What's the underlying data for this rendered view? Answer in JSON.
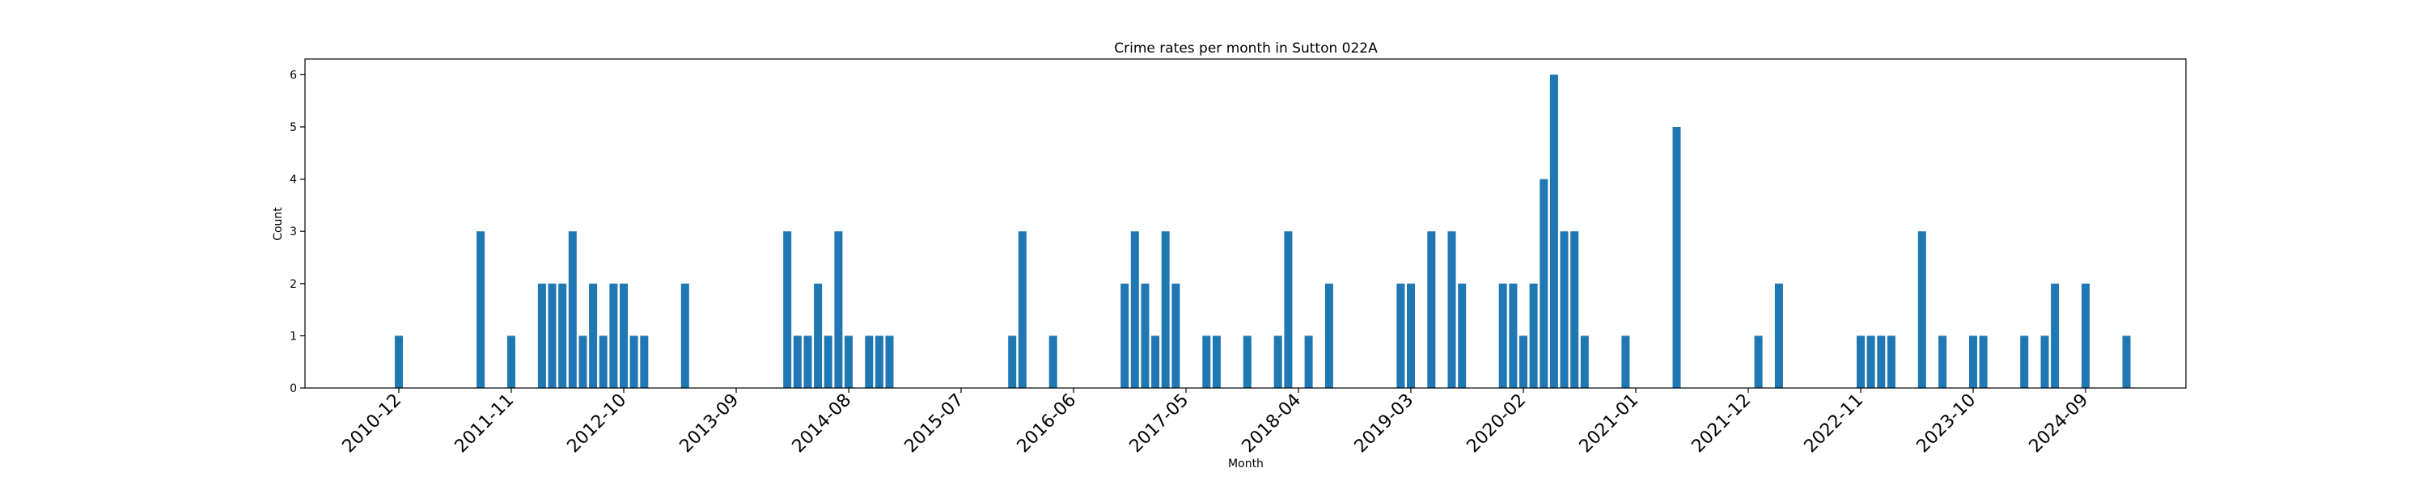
{
  "chart_data": {
    "type": "bar",
    "title": "Crime rates per month in Sutton 022A",
    "xlabel": "Month",
    "ylabel": "Count",
    "ylim": [
      0,
      6.3
    ],
    "y_ticks": [
      0,
      1,
      2,
      3,
      4,
      5,
      6
    ],
    "x_ticks": [
      "2010-12",
      "2011-11",
      "2012-10",
      "2013-09",
      "2014-08",
      "2015-07",
      "2016-06",
      "2017-05",
      "2018-04",
      "2019-03",
      "2020-02",
      "2021-01",
      "2021-12",
      "2022-11",
      "2023-10",
      "2024-09"
    ],
    "bar_color": "#1f77b4",
    "months": [
      "2010-12",
      "2011-08",
      "2011-11",
      "2012-02",
      "2012-03",
      "2012-04",
      "2012-05",
      "2012-06",
      "2012-07",
      "2012-08",
      "2012-09",
      "2012-10",
      "2012-11",
      "2012-12",
      "2013-04",
      "2014-02",
      "2014-03",
      "2014-04",
      "2014-05",
      "2014-06",
      "2014-07",
      "2014-08",
      "2014-10",
      "2014-11",
      "2014-12",
      "2015-12",
      "2016-01",
      "2016-04",
      "2016-11",
      "2016-12",
      "2017-01",
      "2017-02",
      "2017-03",
      "2017-04",
      "2017-07",
      "2017-08",
      "2017-11",
      "2018-02",
      "2018-03",
      "2018-05",
      "2018-07",
      "2019-02",
      "2019-03",
      "2019-05",
      "2019-07",
      "2019-08",
      "2019-12",
      "2020-01",
      "2020-02",
      "2020-03",
      "2020-04",
      "2020-05",
      "2020-06",
      "2020-07",
      "2020-08",
      "2020-12",
      "2021-05",
      "2022-01",
      "2022-03",
      "2022-11",
      "2022-12",
      "2023-01",
      "2023-02",
      "2023-05",
      "2023-07",
      "2023-10",
      "2023-11",
      "2024-03",
      "2024-05",
      "2024-06",
      "2024-09",
      "2025-01"
    ],
    "values": [
      1,
      3,
      1,
      2,
      2,
      2,
      3,
      1,
      2,
      1,
      2,
      2,
      1,
      1,
      2,
      3,
      1,
      1,
      2,
      1,
      3,
      1,
      1,
      1,
      1,
      1,
      3,
      1,
      2,
      3,
      2,
      1,
      3,
      2,
      1,
      1,
      1,
      1,
      3,
      1,
      2,
      2,
      2,
      3,
      3,
      2,
      2,
      2,
      1,
      2,
      4,
      6,
      3,
      3,
      1,
      1,
      5,
      1,
      2,
      1,
      1,
      1,
      1,
      3,
      1,
      1,
      1,
      1,
      1,
      2,
      2,
      1
    ]
  }
}
